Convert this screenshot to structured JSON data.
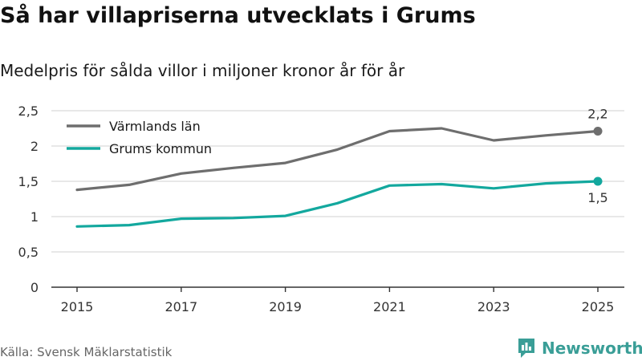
{
  "header": {
    "title": "Så har villapriserna utvecklats i Grums",
    "subtitle": "Medelpris för sålda villor i miljoner kronor år för år"
  },
  "footer": {
    "source": "Källa: Svensk Mäklarstatistik",
    "brand": "Newsworthy",
    "brand_icon": "newsworthy-logo-icon"
  },
  "colors": {
    "varmland": "#6e6e6e",
    "grums": "#13a89e",
    "grid": "#d9d9d9",
    "axis": "#333333",
    "brand": "#3a9e97"
  },
  "chart_data": {
    "type": "line",
    "title": "Så har villapriserna utvecklats i Grums",
    "subtitle": "Medelpris för sålda villor i miljoner kronor år för år",
    "xlabel": "",
    "ylabel": "",
    "x": [
      2015,
      2016,
      2017,
      2018,
      2019,
      2020,
      2021,
      2022,
      2023,
      2024,
      2025
    ],
    "xticks": [
      "2015",
      "2017",
      "2019",
      "2021",
      "2023",
      "2025"
    ],
    "yticks": [
      "0",
      "0,5",
      "1",
      "1,5",
      "2",
      "2,5"
    ],
    "ylim": [
      0,
      2.5
    ],
    "grid": true,
    "legend": "top-left",
    "series": [
      {
        "name": "Värmlands län",
        "values": [
          1.38,
          1.45,
          1.61,
          1.69,
          1.76,
          1.95,
          2.21,
          2.25,
          2.08,
          2.15,
          2.21
        ],
        "end_label": "2,2"
      },
      {
        "name": "Grums kommun",
        "values": [
          0.86,
          0.88,
          0.97,
          0.98,
          1.01,
          1.19,
          1.44,
          1.46,
          1.4,
          1.47,
          1.5
        ],
        "end_label": "1,5"
      }
    ]
  }
}
